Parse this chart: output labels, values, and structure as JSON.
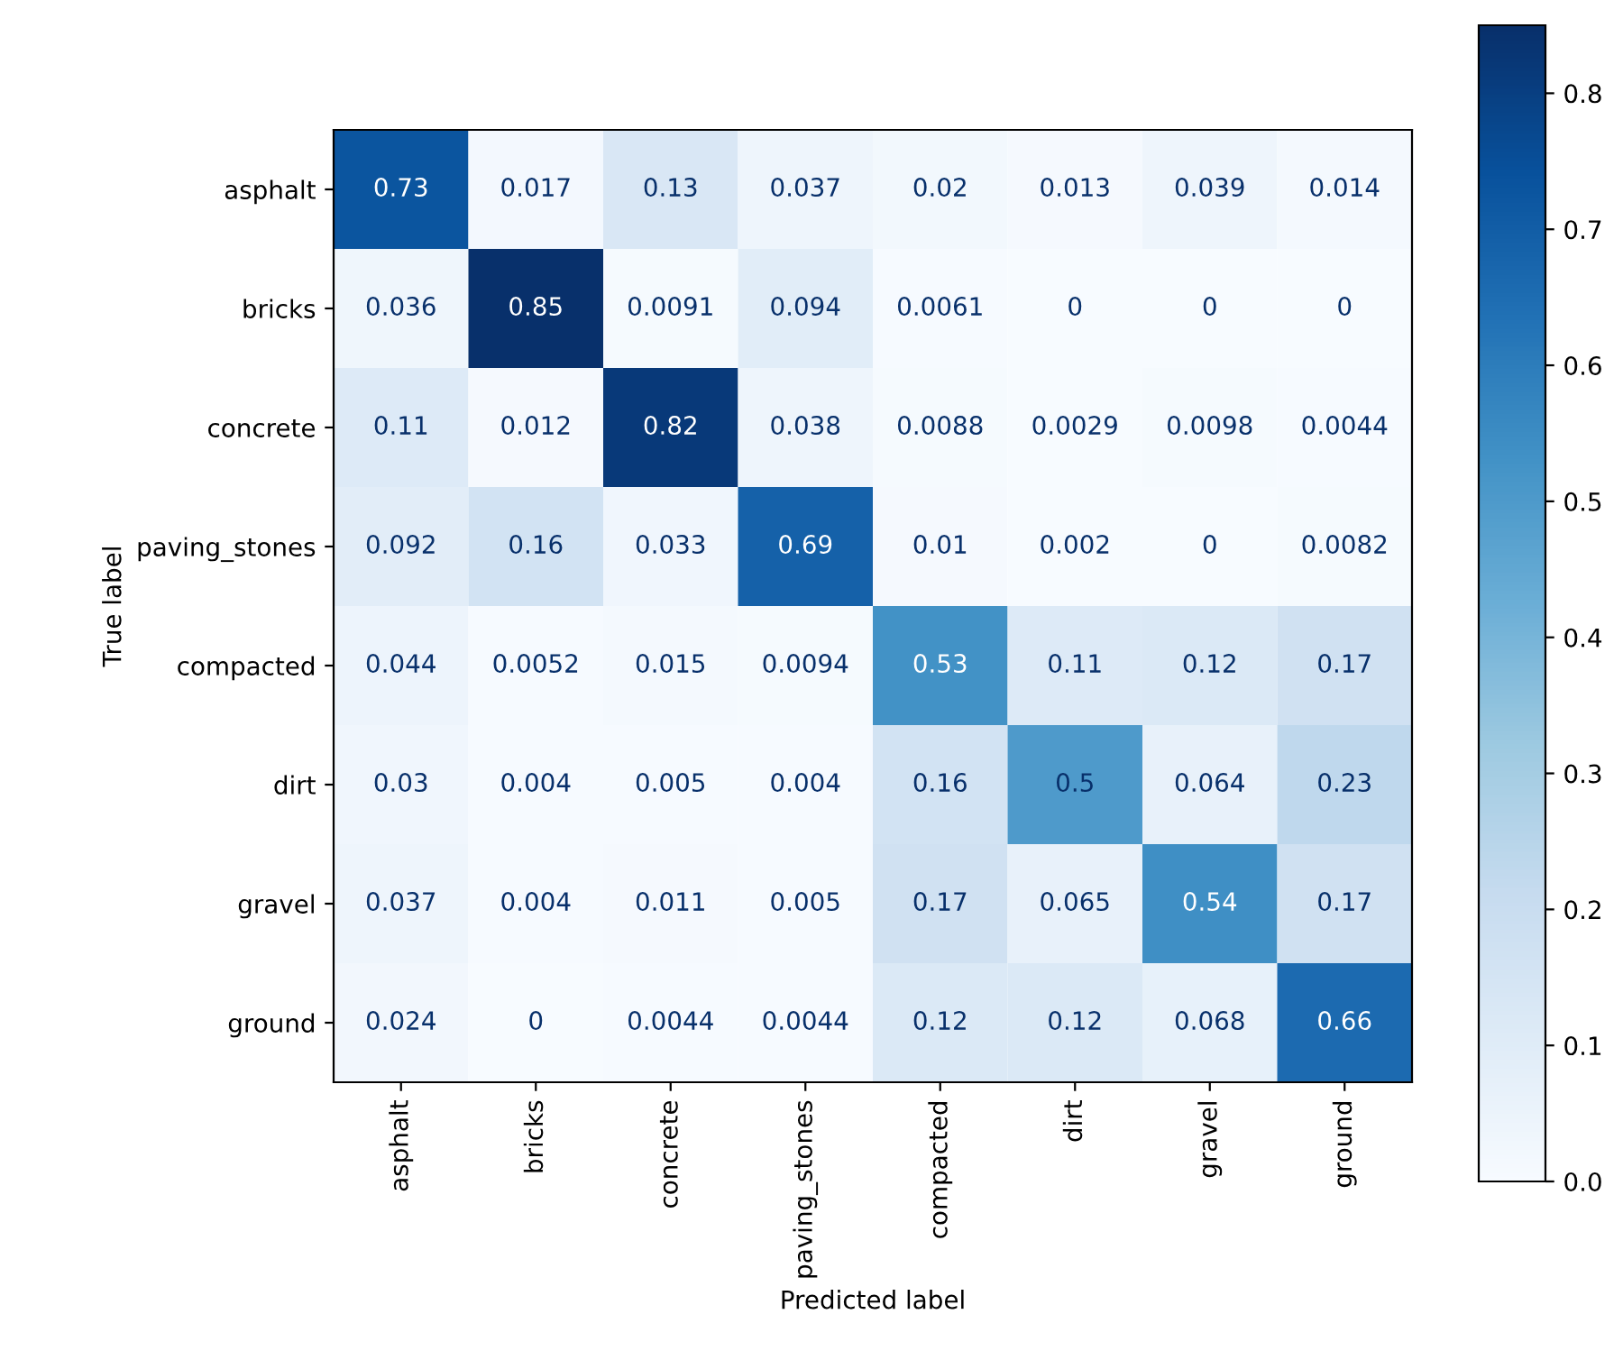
{
  "chart_data": {
    "type": "heatmap",
    "xlabel": "Predicted label",
    "ylabel": "True label",
    "categories": [
      "asphalt",
      "bricks",
      "concrete",
      "paving_stones",
      "compacted",
      "dirt",
      "gravel",
      "ground"
    ],
    "y_categories": [
      "asphalt",
      "bricks",
      "concrete",
      "paving_stones",
      "compacted",
      "dirt",
      "gravel",
      "ground"
    ],
    "cells": [
      [
        0.73,
        0.017,
        0.13,
        0.037,
        0.02,
        0.013,
        0.039,
        0.014
      ],
      [
        0.036,
        0.85,
        0.0091,
        0.094,
        0.0061,
        0,
        0,
        0
      ],
      [
        0.11,
        0.012,
        0.82,
        0.038,
        0.0088,
        0.0029,
        0.0098,
        0.0044
      ],
      [
        0.092,
        0.16,
        0.033,
        0.69,
        0.01,
        0.002,
        0,
        0.0082
      ],
      [
        0.044,
        0.0052,
        0.015,
        0.0094,
        0.53,
        0.11,
        0.12,
        0.17
      ],
      [
        0.03,
        0.004,
        0.005,
        0.004,
        0.16,
        0.5,
        0.064,
        0.23
      ],
      [
        0.037,
        0.004,
        0.011,
        0.005,
        0.17,
        0.065,
        0.54,
        0.17
      ],
      [
        0.024,
        0,
        0.0044,
        0.0044,
        0.12,
        0.12,
        0.068,
        0.66
      ]
    ],
    "clim": [
      0,
      0.85
    ],
    "cticks": [
      {
        "value": 0,
        "label": "0.0"
      },
      0.1,
      0.2,
      0.3,
      0.4,
      0.5,
      0.6,
      0.7,
      0.8
    ],
    "data_labels": true
  }
}
